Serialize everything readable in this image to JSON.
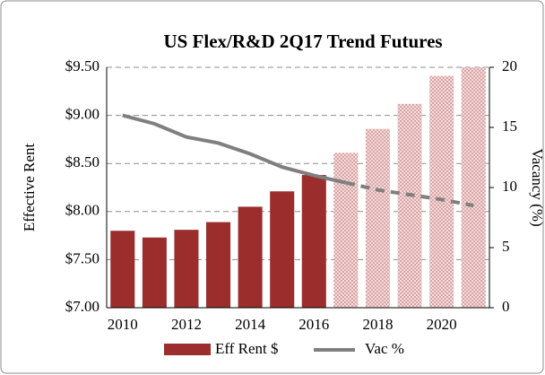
{
  "chart_data": {
    "type": "bar_line",
    "title": "US Flex/R&D 2Q17 Trend Futures",
    "y_label": "Effective Rent",
    "y2_label": "Vacancy (%)",
    "categories": [
      "2010",
      null,
      "2012",
      null,
      "2014",
      null,
      "2016",
      null,
      "2018",
      null,
      "2020",
      null
    ],
    "series": [
      {
        "name": "Eff Rent $",
        "color": "#9b2d2d",
        "kind": "bar",
        "values": [
          7.8,
          7.73,
          7.81,
          7.89,
          8.05,
          8.21,
          8.38,
          8.61,
          8.86,
          9.12,
          9.41,
          9.5
        ],
        "forecast": [
          false,
          false,
          false,
          false,
          false,
          false,
          false,
          true,
          true,
          true,
          true,
          true
        ]
      },
      {
        "name": "Vac %",
        "color": "#7f7f7f",
        "kind": "line",
        "axis": "y2",
        "values": [
          16.0,
          15.3,
          14.2,
          13.7,
          12.8,
          11.7,
          11.0,
          10.4,
          9.8,
          9.4,
          9.0,
          8.5
        ],
        "forecast": [
          false,
          false,
          false,
          false,
          false,
          false,
          false,
          true,
          true,
          true,
          true,
          true
        ]
      }
    ],
    "ylim": [
      7.0,
      9.5
    ],
    "yticks": [
      {
        "value": 7.0,
        "label": "$7.00"
      },
      {
        "value": 7.5,
        "label": "$7.50"
      },
      {
        "value": 8.0,
        "label": "$8.00"
      },
      {
        "value": 8.5,
        "label": "$8.50"
      },
      {
        "value": 9.0,
        "label": "$9.00"
      },
      {
        "value": 9.5,
        "label": "$9.50"
      }
    ],
    "y2lim": [
      0,
      20
    ],
    "y2ticks": [
      0,
      5,
      10,
      15,
      20
    ],
    "grid": true,
    "legend": "bottom"
  }
}
